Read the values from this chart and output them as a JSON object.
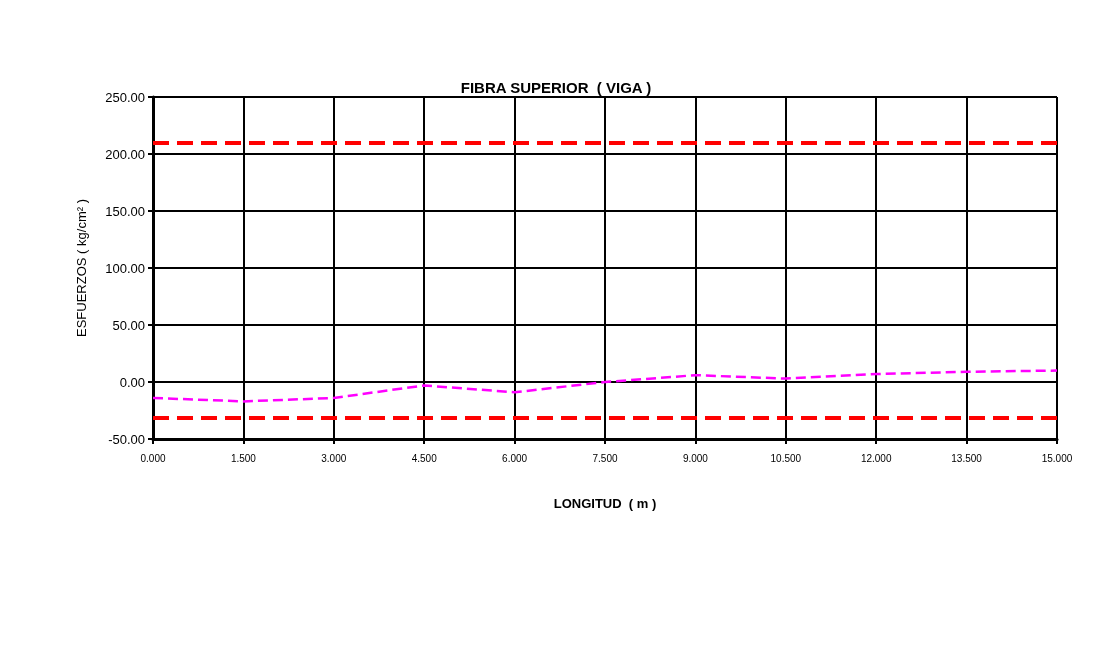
{
  "chart_data": {
    "type": "line",
    "title": "FIBRA SUPERIOR  ( VIGA )",
    "xlabel": "LONGITUD  ( m )",
    "ylabel": "ESFUERZOS ( kg/cm² )",
    "x": [
      0,
      1.5,
      3,
      4.5,
      6,
      7.5,
      9,
      10.5,
      12,
      13.5,
      15
    ],
    "series": [
      {
        "color": "#ff00ff",
        "values": [
          -14,
          -17,
          -14,
          -3,
          -9,
          0,
          6,
          3,
          7,
          9,
          10
        ]
      }
    ],
    "xlim": [
      0,
      15
    ],
    "xticks": [
      {
        "value": 0,
        "label": "0.000"
      },
      {
        "value": 1.5,
        "label": "1.500"
      },
      {
        "value": 3,
        "label": "3.000"
      },
      {
        "value": 4.5,
        "label": "4.500"
      },
      {
        "value": 6,
        "label": "6.000"
      },
      {
        "value": 7.5,
        "label": "7.500"
      },
      {
        "value": 9,
        "label": "9.000"
      },
      {
        "value": 10.5,
        "label": "10.500"
      },
      {
        "value": 12,
        "label": "12.000"
      },
      {
        "value": 13.5,
        "label": "13.500"
      },
      {
        "value": 15,
        "label": "15.000"
      }
    ],
    "ylim": [
      -50,
      250
    ],
    "yticks": [
      {
        "value": -50,
        "label": "-50.00"
      },
      {
        "value": 0,
        "label": "0.00"
      },
      {
        "value": 50,
        "label": "50.00"
      },
      {
        "value": 100,
        "label": "100.00"
      },
      {
        "value": 150,
        "label": "150.00"
      },
      {
        "value": 200,
        "label": "200.00"
      },
      {
        "value": 250,
        "label": "250.00"
      }
    ],
    "ref_lines": [
      {
        "axis": "y",
        "value": 210,
        "color": "#ff0000",
        "line_style": "dashed"
      },
      {
        "axis": "y",
        "value": -31,
        "color": "#ff0000",
        "line_style": "dashed"
      }
    ],
    "grid": true,
    "marker": "none",
    "line_style": "dashed"
  }
}
